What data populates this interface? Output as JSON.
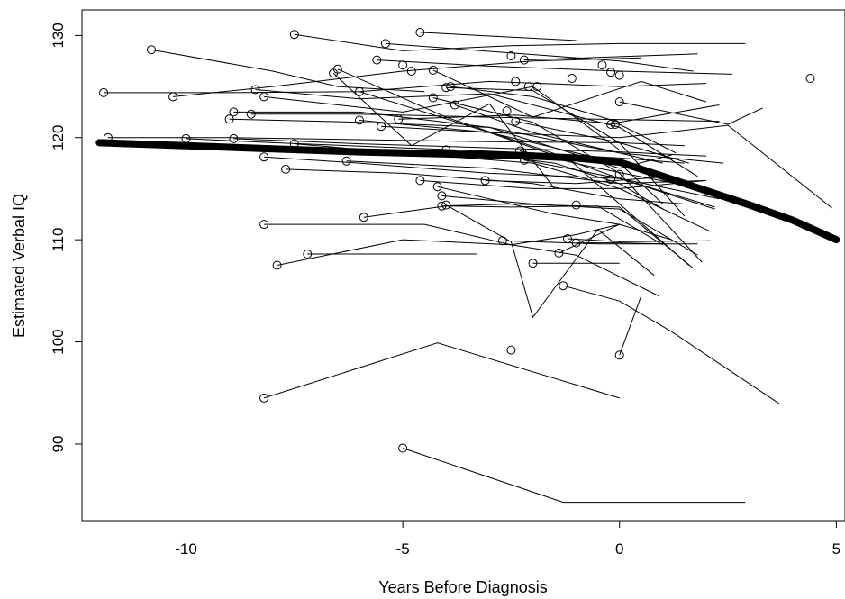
{
  "chart_data": {
    "type": "line",
    "title": "",
    "xlabel": "Years Before Diagnosis",
    "ylabel": "Estimated Verbal IQ",
    "xlim": [
      -12.4,
      5.2
    ],
    "ylim": [
      82.5,
      132.5
    ],
    "xticks": [
      -10,
      -5,
      0,
      5
    ],
    "yticks": [
      90,
      100,
      110,
      120,
      130
    ],
    "grid": false,
    "legend": "none",
    "colors": {
      "lines": "#000000",
      "mean_line": "#000000",
      "markers": "#000000"
    },
    "mean_trajectory": {
      "x": [
        -12,
        -10,
        -8,
        -6,
        -4,
        -2,
        -1,
        0,
        1,
        2,
        3,
        4,
        5
      ],
      "y": [
        119.5,
        119.2,
        118.9,
        118.6,
        118.4,
        118.2,
        118.0,
        117.6,
        116.2,
        114.8,
        113.4,
        111.9,
        110.0
      ]
    },
    "series": [
      {
        "x": [
          -7.5,
          -5.0,
          -2.5,
          0.0,
          2.9
        ],
        "y": [
          130.1,
          128.5,
          129.0,
          129.2,
          129.2
        ]
      },
      {
        "x": [
          -4.6,
          -1.0
        ],
        "y": [
          130.3,
          129.5
        ]
      },
      {
        "x": [
          -5.4,
          0.0,
          1.7
        ],
        "y": [
          129.2,
          127.5,
          126.5
        ]
      },
      {
        "x": [
          -10.8,
          -8.0,
          -6.5,
          -4.5
        ],
        "y": [
          128.6,
          126.5,
          125.0,
          124.5
        ]
      },
      {
        "x": [
          -11.9,
          -9.0,
          -6.0,
          -3.0,
          0.0,
          2.0
        ],
        "y": [
          124.4,
          124.4,
          124.5,
          125.5,
          125.0,
          125.3
        ]
      },
      {
        "x": [
          -10.3,
          -8.0,
          -5.0,
          -2.0,
          0.5
        ],
        "y": [
          124.0,
          125.0,
          126.5,
          127.5,
          127.8
        ]
      },
      {
        "x": [
          -2.2,
          1.8
        ],
        "y": [
          127.6,
          128.2
        ]
      },
      {
        "x": [
          -5.6,
          -3.0,
          0.0,
          2.6
        ],
        "y": [
          127.6,
          127.0,
          126.5,
          126.2
        ]
      },
      {
        "x": [
          -6.6,
          -4.8,
          -3.0,
          -1.5
        ],
        "y": [
          126.3,
          119.2,
          123.3,
          115.0
        ]
      },
      {
        "x": [
          -6.5,
          -4.0,
          -1.2,
          1.6
        ],
        "y": [
          126.7,
          122.0,
          118.0,
          107.5
        ]
      },
      {
        "x": [
          -4.3,
          -2.0,
          0.5,
          2.0
        ],
        "y": [
          126.6,
          122.0,
          125.5,
          123.5
        ]
      },
      {
        "x": [
          -8.4,
          -6.0,
          -3.0,
          0.0,
          1.8
        ],
        "y": [
          124.7,
          123.8,
          124.3,
          121.0,
          116.2
        ]
      },
      {
        "x": [
          -4.0,
          -2.0,
          0.0,
          1.5
        ],
        "y": [
          124.9,
          124.6,
          119.5,
          112.3
        ]
      },
      {
        "x": [
          -3.9,
          -2.0,
          0.0,
          2.3
        ],
        "y": [
          125.0,
          124.0,
          121.5,
          123.2
        ]
      },
      {
        "x": [
          -8.2,
          -5.0,
          -2.0,
          0.0
        ],
        "y": [
          124.0,
          122.5,
          125.0,
          118.8
        ]
      },
      {
        "x": [
          -6.0,
          -3.0,
          0.0,
          2.2
        ],
        "y": [
          124.5,
          120.5,
          116.0,
          113.0
        ]
      },
      {
        "x": [
          -4.3,
          -2.0,
          0.0,
          1.9
        ],
        "y": [
          123.9,
          121.5,
          116.5,
          107.8
        ]
      },
      {
        "x": [
          -3.8,
          -2.0,
          1.0
        ],
        "y": [
          123.2,
          120.5,
          117.5
        ]
      },
      {
        "x": [
          0.0,
          2.5,
          3.3
        ],
        "y": [
          123.5,
          121.3,
          122.9
        ]
      },
      {
        "x": [
          -8.9,
          -6.0,
          -3.0,
          0.0,
          2.4
        ],
        "y": [
          122.5,
          122.5,
          121.0,
          118.5,
          117.5
        ]
      },
      {
        "x": [
          -8.5,
          -6.0,
          -3.0,
          -0.5,
          2.3
        ],
        "y": [
          122.3,
          122.3,
          122.0,
          121.8,
          121.6
        ]
      },
      {
        "x": [
          -9.0,
          -6.0,
          -3.0,
          0.0,
          1.2
        ],
        "y": [
          121.8,
          121.5,
          121.0,
          117.0,
          118.3
        ]
      },
      {
        "x": [
          -6.0,
          -3.0,
          0.0,
          1.0
        ],
        "y": [
          121.7,
          120.5,
          117.5,
          113.5
        ]
      },
      {
        "x": [
          -5.1,
          -2.4,
          0.0,
          1.3
        ],
        "y": [
          121.8,
          122.2,
          121.3,
          118.5
        ]
      },
      {
        "x": [
          -2.4,
          0.0,
          1.6
        ],
        "y": [
          121.6,
          119.5,
          117.5
        ]
      },
      {
        "x": [
          -5.5,
          -3.0,
          0.0,
          2.5,
          4.9
        ],
        "y": [
          121.1,
          120.5,
          120.0,
          121.2,
          113.1
        ]
      },
      {
        "x": [
          -11.8,
          -9.0,
          -6.0,
          -3.0,
          0.0,
          1.5
        ],
        "y": [
          120.0,
          120.0,
          119.8,
          119.6,
          119.5,
          119.2
        ]
      },
      {
        "x": [
          -10.0,
          -8.0,
          -5.0,
          -2.0,
          0.0,
          1.5
        ],
        "y": [
          119.9,
          119.5,
          119.0,
          118.5,
          118.0,
          117.5
        ]
      },
      {
        "x": [
          -8.9,
          -6.0,
          -3.0,
          0.0,
          2.0
        ],
        "y": [
          119.9,
          119.4,
          119.0,
          118.6,
          118.2
        ]
      },
      {
        "x": [
          -7.5,
          -5.0,
          -2.0,
          0.0,
          2.1
        ],
        "y": [
          119.4,
          118.5,
          117.5,
          115.0,
          110.8
        ]
      },
      {
        "x": [
          -4.0,
          -1.5,
          0.0,
          1.0
        ],
        "y": [
          118.8,
          117.5,
          115.5,
          113.0
        ]
      },
      {
        "x": [
          -2.3,
          -0.5,
          1.3
        ],
        "y": [
          118.7,
          117.0,
          115.5
        ]
      },
      {
        "x": [
          -8.2,
          -6.0,
          -3.0,
          0.0,
          2.2
        ],
        "y": [
          118.1,
          117.5,
          116.5,
          116.0,
          113.2
        ]
      },
      {
        "x": [
          -6.3,
          -3.0,
          0.0,
          2.0
        ],
        "y": [
          117.7,
          117.0,
          115.5,
          115.8
        ]
      },
      {
        "x": [
          -2.2,
          0.0,
          2.3
        ],
        "y": [
          117.8,
          116.0,
          114.0
        ]
      },
      {
        "x": [
          -7.7,
          -5.0,
          -2.0,
          0.0,
          1.5
        ],
        "y": [
          116.9,
          116.5,
          115.5,
          114.0,
          113.5
        ]
      },
      {
        "x": [
          -4.6,
          -2.0,
          0.0,
          2.0
        ],
        "y": [
          115.8,
          115.0,
          115.0,
          115.8
        ]
      },
      {
        "x": [
          -3.1,
          -1.0,
          1.2
        ],
        "y": [
          115.8,
          115.5,
          116.2
        ]
      },
      {
        "x": [
          -4.2,
          -3.0,
          -1.5,
          0.0,
          1.2
        ],
        "y": [
          115.2,
          114.0,
          112.5,
          111.5,
          110.0
        ]
      },
      {
        "x": [
          -4.1,
          -2.0,
          0.0,
          1.8
        ],
        "y": [
          114.3,
          113.5,
          113.0,
          108.5
        ]
      },
      {
        "x": [
          -4.1,
          -2.5,
          0.0,
          1.7
        ],
        "y": [
          113.3,
          113.5,
          113.2,
          107.2
        ]
      },
      {
        "x": [
          -4.0,
          -2.5,
          -2.0,
          -0.5,
          0.8
        ],
        "y": [
          113.4,
          109.8,
          102.4,
          111.0,
          106.5
        ]
      },
      {
        "x": [
          -5.9,
          -4.0,
          -2.5,
          -0.5,
          1.0
        ],
        "y": [
          112.2,
          113.3,
          113.2,
          113.3,
          109.5
        ]
      },
      {
        "x": [
          -8.2,
          -4.5,
          -2.5,
          -1.0,
          0.9
        ],
        "y": [
          111.5,
          111.5,
          109.5,
          108.5,
          104.5
        ]
      },
      {
        "x": [
          -7.9,
          -5.0,
          -2.5,
          -1.0,
          0.0
        ],
        "y": [
          107.5,
          110.0,
          109.5,
          110.5,
          111.5
        ]
      },
      {
        "x": [
          -7.2,
          -5.0,
          -3.3
        ],
        "y": [
          108.6,
          108.6,
          108.6
        ]
      },
      {
        "x": [
          -1.2,
          0.0,
          2.1
        ],
        "y": [
          110.1,
          109.8,
          109.9
        ]
      },
      {
        "x": [
          -2.7,
          -0.5,
          1.8
        ],
        "y": [
          109.9,
          109.6,
          109.6
        ]
      },
      {
        "x": [
          -1.0,
          0.0,
          1.0
        ],
        "y": [
          109.7,
          109.7,
          109.6
        ]
      },
      {
        "x": [
          -2.0,
          -1.0,
          0.0
        ],
        "y": [
          107.7,
          107.7,
          107.7
        ]
      },
      {
        "x": [
          -1.3,
          0.0,
          1.2,
          3.7
        ],
        "y": [
          105.5,
          104.0,
          101.0,
          93.9
        ]
      },
      {
        "x": [
          0.0,
          0.5
        ],
        "y": [
          98.7,
          104.5
        ]
      },
      {
        "x": [
          -1.4,
          0.0
        ],
        "y": [
          108.7,
          111.5
        ]
      },
      {
        "x": [
          -8.2,
          -4.2,
          0.0
        ],
        "y": [
          94.5,
          99.9,
          94.5
        ]
      },
      {
        "x": [
          -5.0,
          -1.3,
          2.9
        ],
        "y": [
          89.6,
          84.3,
          84.3
        ]
      },
      {
        "x": [
          4.4
        ],
        "y": [
          125.8
        ]
      },
      {
        "x": [
          -2.5
        ],
        "y": [
          99.2
        ]
      },
      {
        "x": [
          -1.1
        ],
        "y": [
          125.8
        ]
      },
      {
        "x": [
          -0.4
        ],
        "y": [
          127.1
        ]
      },
      {
        "x": [
          -0.2
        ],
        "y": [
          126.4
        ]
      },
      {
        "x": [
          -0.2
        ],
        "y": [
          121.3
        ]
      },
      {
        "x": [
          -0.1
        ],
        "y": [
          121.3
        ]
      },
      {
        "x": [
          0.0
        ],
        "y": [
          126.1
        ]
      },
      {
        "x": [
          -0.2
        ],
        "y": [
          115.9
        ]
      },
      {
        "x": [
          0.0
        ],
        "y": [
          116.4
        ]
      },
      {
        "x": [
          -1.0
        ],
        "y": [
          113.4
        ]
      },
      {
        "x": [
          -2.5
        ],
        "y": [
          128.0
        ]
      },
      {
        "x": [
          -2.4
        ],
        "y": [
          125.5
        ]
      },
      {
        "x": [
          -2.6
        ],
        "y": [
          122.6
        ]
      },
      {
        "x": [
          -1.9
        ],
        "y": [
          125.0
        ]
      },
      {
        "x": [
          -2.1
        ],
        "y": [
          125.0
        ]
      },
      {
        "x": [
          -4.8
        ],
        "y": [
          126.5
        ]
      },
      {
        "x": [
          -5.0
        ],
        "y": [
          127.1
        ]
      }
    ]
  }
}
